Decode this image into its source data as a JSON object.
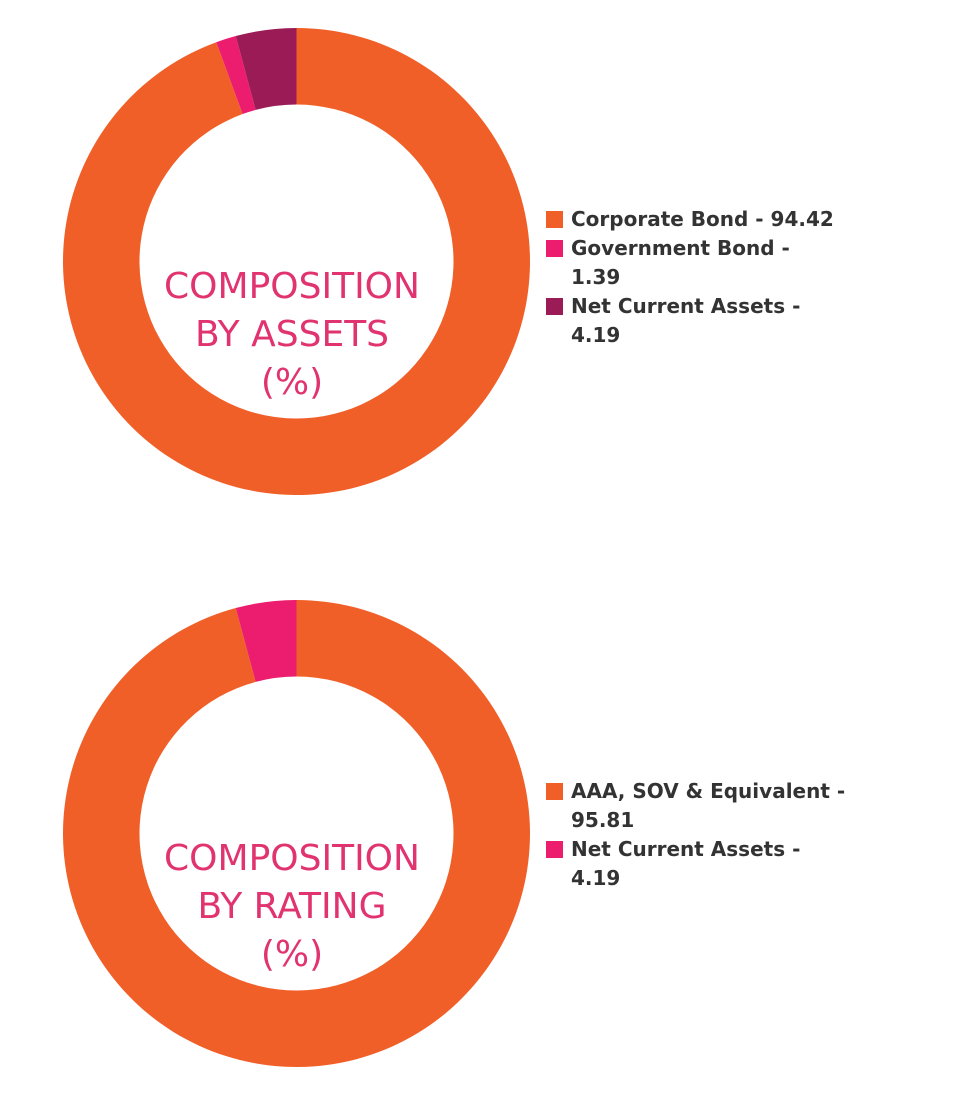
{
  "chart_data": [
    {
      "type": "pie",
      "title": [
        "COMPOSITION",
        "BY ASSETS",
        "(%)"
      ],
      "categories": [
        "Corporate Bond",
        "Government Bond",
        "Net Current Assets"
      ],
      "values": [
        94.42,
        1.39,
        4.19
      ],
      "colors": [
        "#f15f29",
        "#ec1c6e",
        "#9a1b56"
      ],
      "legend": [
        "Corporate Bond - 94.42",
        "Government Bond - 1.39",
        "Net Current Assets - 4.19"
      ],
      "legend_position": "right"
    },
    {
      "type": "pie",
      "title": [
        "COMPOSITION",
        "BY RATING",
        "(%)"
      ],
      "categories": [
        "AAA, SOV & Equivalent",
        "Net Current Assets"
      ],
      "values": [
        95.81,
        4.19
      ],
      "colors": [
        "#f15f29",
        "#ec1c6e"
      ],
      "legend": [
        "AAA, SOV & Equivalent - 95.81",
        "Net Current Assets - 4.19"
      ],
      "legend_position": "right"
    }
  ]
}
